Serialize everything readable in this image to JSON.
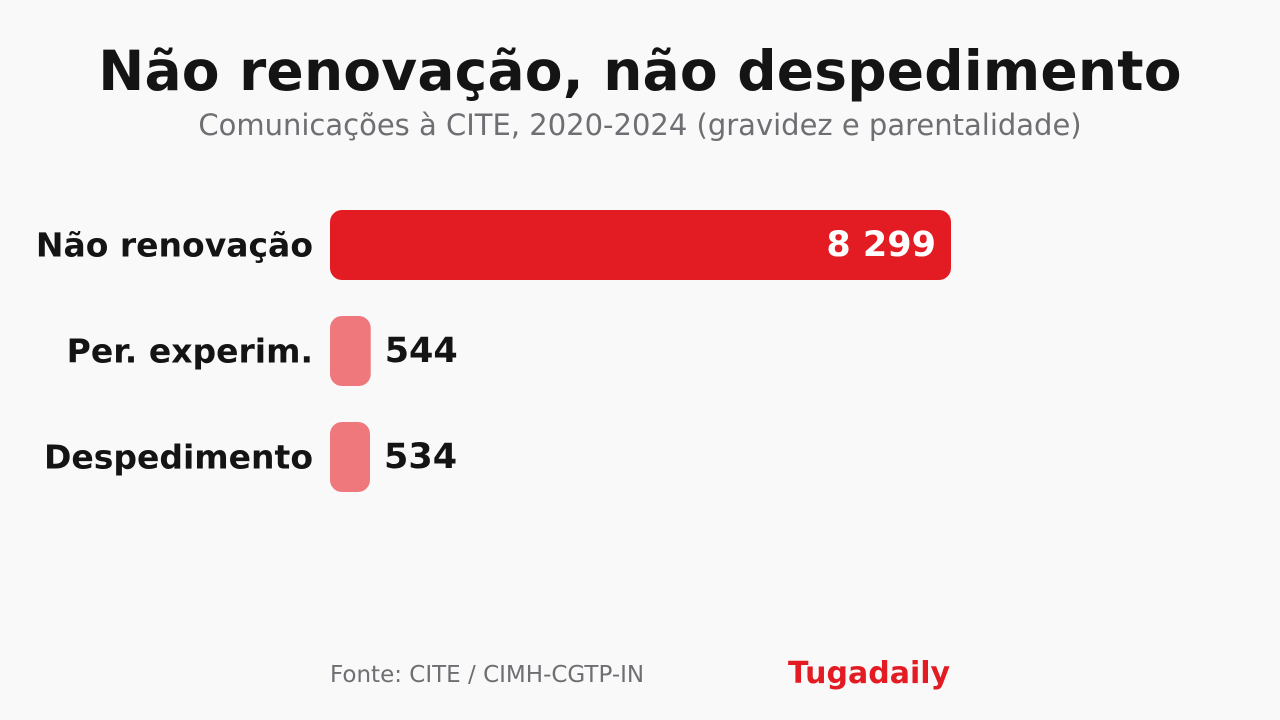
{
  "header": {
    "title": "Não renovação, não despedimento",
    "subtitle": "Comunicações à CITE, 2020-2024 (gravidez e parentalidade)"
  },
  "footer": {
    "source": "Fonte: CITE / CIMH-CGTP-IN",
    "brand": "Tugadaily"
  },
  "colors": {
    "background": "#f9f9f9",
    "primary_bar": "#e31b23",
    "secondary_bar": "#ef787d",
    "text_dark": "#141414",
    "text_muted": "#6e6e73",
    "brand": "#e31b23"
  },
  "chart_data": {
    "type": "bar",
    "orientation": "horizontal",
    "categories": [
      "Não renovação",
      "Per. experim.",
      "Despedimento"
    ],
    "values": [
      8299,
      544,
      534
    ],
    "value_labels": [
      "8 299",
      "544",
      "534"
    ],
    "xlim": [
      0,
      8299
    ],
    "grid": false,
    "legend": "none"
  }
}
